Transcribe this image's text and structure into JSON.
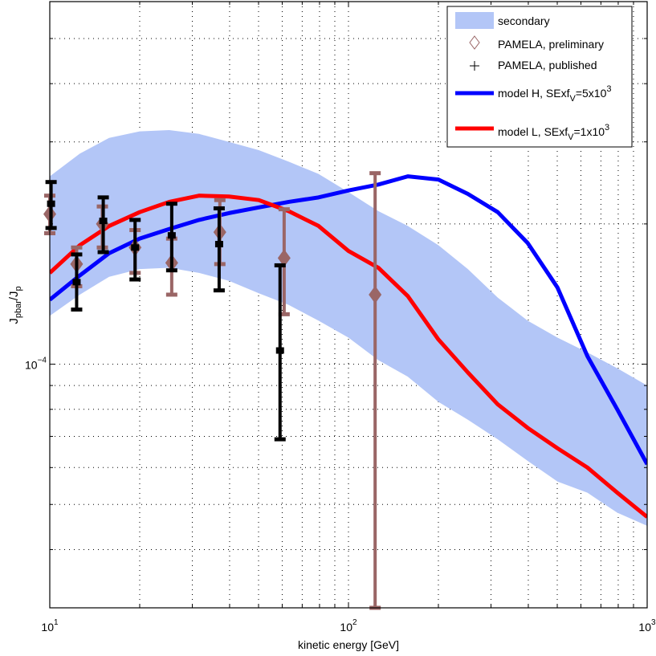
{
  "chart_data": {
    "type": "line",
    "title": "",
    "xlabel": "kinetic energy [GeV]",
    "ylabel": {
      "main": "J",
      "sub1": "pbar",
      "mid": "/J",
      "sub2": "p"
    },
    "xscale": "log",
    "yscale": "log",
    "xlim": [
      10,
      1000
    ],
    "ylim": [
      3e-05,
      0.0006
    ],
    "grid": true,
    "legend_position": "top-right",
    "x_ticks": [
      {
        "value": 10,
        "base": "10",
        "exp": "1"
      },
      {
        "value": 100,
        "base": "10",
        "exp": "2"
      },
      {
        "value": 1000,
        "base": "10",
        "exp": "3"
      }
    ],
    "y_ticks": [
      {
        "value": 0.0001,
        "base": "10",
        "exp": "−4"
      }
    ],
    "colors": {
      "secondary": "#b3c6f7",
      "preliminary": "#9a6666",
      "published": "#000000",
      "model_h": "#0000ff",
      "model_l": "#ff0000"
    },
    "legend": [
      {
        "key": "secondary",
        "label": "secondary"
      },
      {
        "key": "preliminary",
        "label": "PAMELA, preliminary"
      },
      {
        "key": "published",
        "label": "PAMELA, published"
      },
      {
        "key": "model_h",
        "label": "model H, SExf",
        "sub": "V",
        "tail": "=5x10",
        "sup": "3"
      },
      {
        "key": "model_l",
        "label": "model L, SExf",
        "sub": "V",
        "tail": "=1x10",
        "sup": "3"
      }
    ],
    "x": [
      10,
      12.6,
      15.8,
      20,
      25.1,
      31.6,
      39.8,
      50.1,
      63.1,
      79.4,
      100,
      126,
      158,
      200,
      251,
      316,
      398,
      501,
      631,
      794,
      1000
    ],
    "series": [
      {
        "name": "model H, SExfV=5x10^3",
        "key": "model_h",
        "values": [
          0.0001375,
          0.000155,
          0.000173,
          0.000186,
          0.000195,
          0.000204,
          0.000211,
          0.000217,
          0.000223,
          0.000228,
          0.000236,
          0.000243,
          0.000253,
          0.000249,
          0.000232,
          0.000212,
          0.000182,
          0.000146,
          0.000104,
          8e-05,
          6.1e-05
        ]
      },
      {
        "name": "model L, SExfV=1x10^3",
        "key": "model_l",
        "values": [
          0.000157,
          0.00018,
          0.000198,
          0.000212,
          0.000223,
          0.00023,
          0.000229,
          0.000225,
          0.000213,
          0.000198,
          0.000175,
          0.000161,
          0.00014,
          0.000113,
          9.6e-05,
          8.2e-05,
          7.3e-05,
          6.6e-05,
          6e-05,
          5.3e-05,
          4.7e-05
        ]
      }
    ],
    "band": {
      "name": "secondary",
      "key": "secondary",
      "upper": [
        0.000253,
        0.000283,
        0.000306,
        0.000316,
        0.000318,
        0.000312,
        0.0003,
        0.000288,
        0.000272,
        0.000256,
        0.000234,
        0.000213,
        0.000198,
        0.00018,
        0.00016,
        0.000139,
        0.000124,
        0.000114,
        0.000106,
        9.8e-05,
        9e-05
      ],
      "lower": [
        0.000127,
        0.000141,
        0.000154,
        0.00016,
        0.000161,
        0.000157,
        0.000151,
        0.000142,
        0.000134,
        0.000124,
        0.000114,
        0.000102,
        9.4e-05,
        8.3e-05,
        7.6e-05,
        6.9e-05,
        6.2e-05,
        5.6e-05,
        5.3e-05,
        4.8e-05,
        4.5e-05
      ]
    },
    "points": [
      {
        "name": "PAMELA, preliminary",
        "key": "preliminary",
        "marker": "diamond",
        "data": [
          {
            "x": 10.0,
            "y": 0.00021,
            "low": 0.000191,
            "high": 0.00023
          },
          {
            "x": 12.3,
            "y": 0.000164,
            "low": 0.000147,
            "high": 0.000178
          },
          {
            "x": 15.0,
            "y": 0.0002,
            "low": 0.000178,
            "high": 0.000218
          },
          {
            "x": 19.3,
            "y": 0.000178,
            "low": 0.000157,
            "high": 0.000194
          },
          {
            "x": 25.6,
            "y": 0.000165,
            "low": 0.000141,
            "high": 0.000186
          },
          {
            "x": 37.1,
            "y": 0.000192,
            "low": 0.000164,
            "high": 0.000225
          },
          {
            "x": 60.9,
            "y": 0.000169,
            "low": 0.000128,
            "high": 0.000215
          },
          {
            "x": 122.8,
            "y": 0.000141,
            "low": 3e-05,
            "high": 0.000257
          }
        ]
      },
      {
        "name": "PAMELA, published",
        "key": "published",
        "marker": "plus",
        "data": [
          {
            "x": 10.1,
            "y": 0.000221,
            "low": 0.000196,
            "high": 0.000246
          },
          {
            "x": 12.3,
            "y": 0.00015,
            "low": 0.000131,
            "high": 0.000172
          },
          {
            "x": 15.1,
            "y": 0.000203,
            "low": 0.000174,
            "high": 0.000228
          },
          {
            "x": 19.3,
            "y": 0.000178,
            "low": 0.000152,
            "high": 0.000204
          },
          {
            "x": 25.6,
            "y": 0.000189,
            "low": 0.000159,
            "high": 0.000221
          },
          {
            "x": 36.9,
            "y": 0.000181,
            "low": 0.000144,
            "high": 0.000216
          },
          {
            "x": 59.0,
            "y": 0.000107,
            "low": 6.9e-05,
            "high": 0.000163
          }
        ]
      }
    ]
  }
}
